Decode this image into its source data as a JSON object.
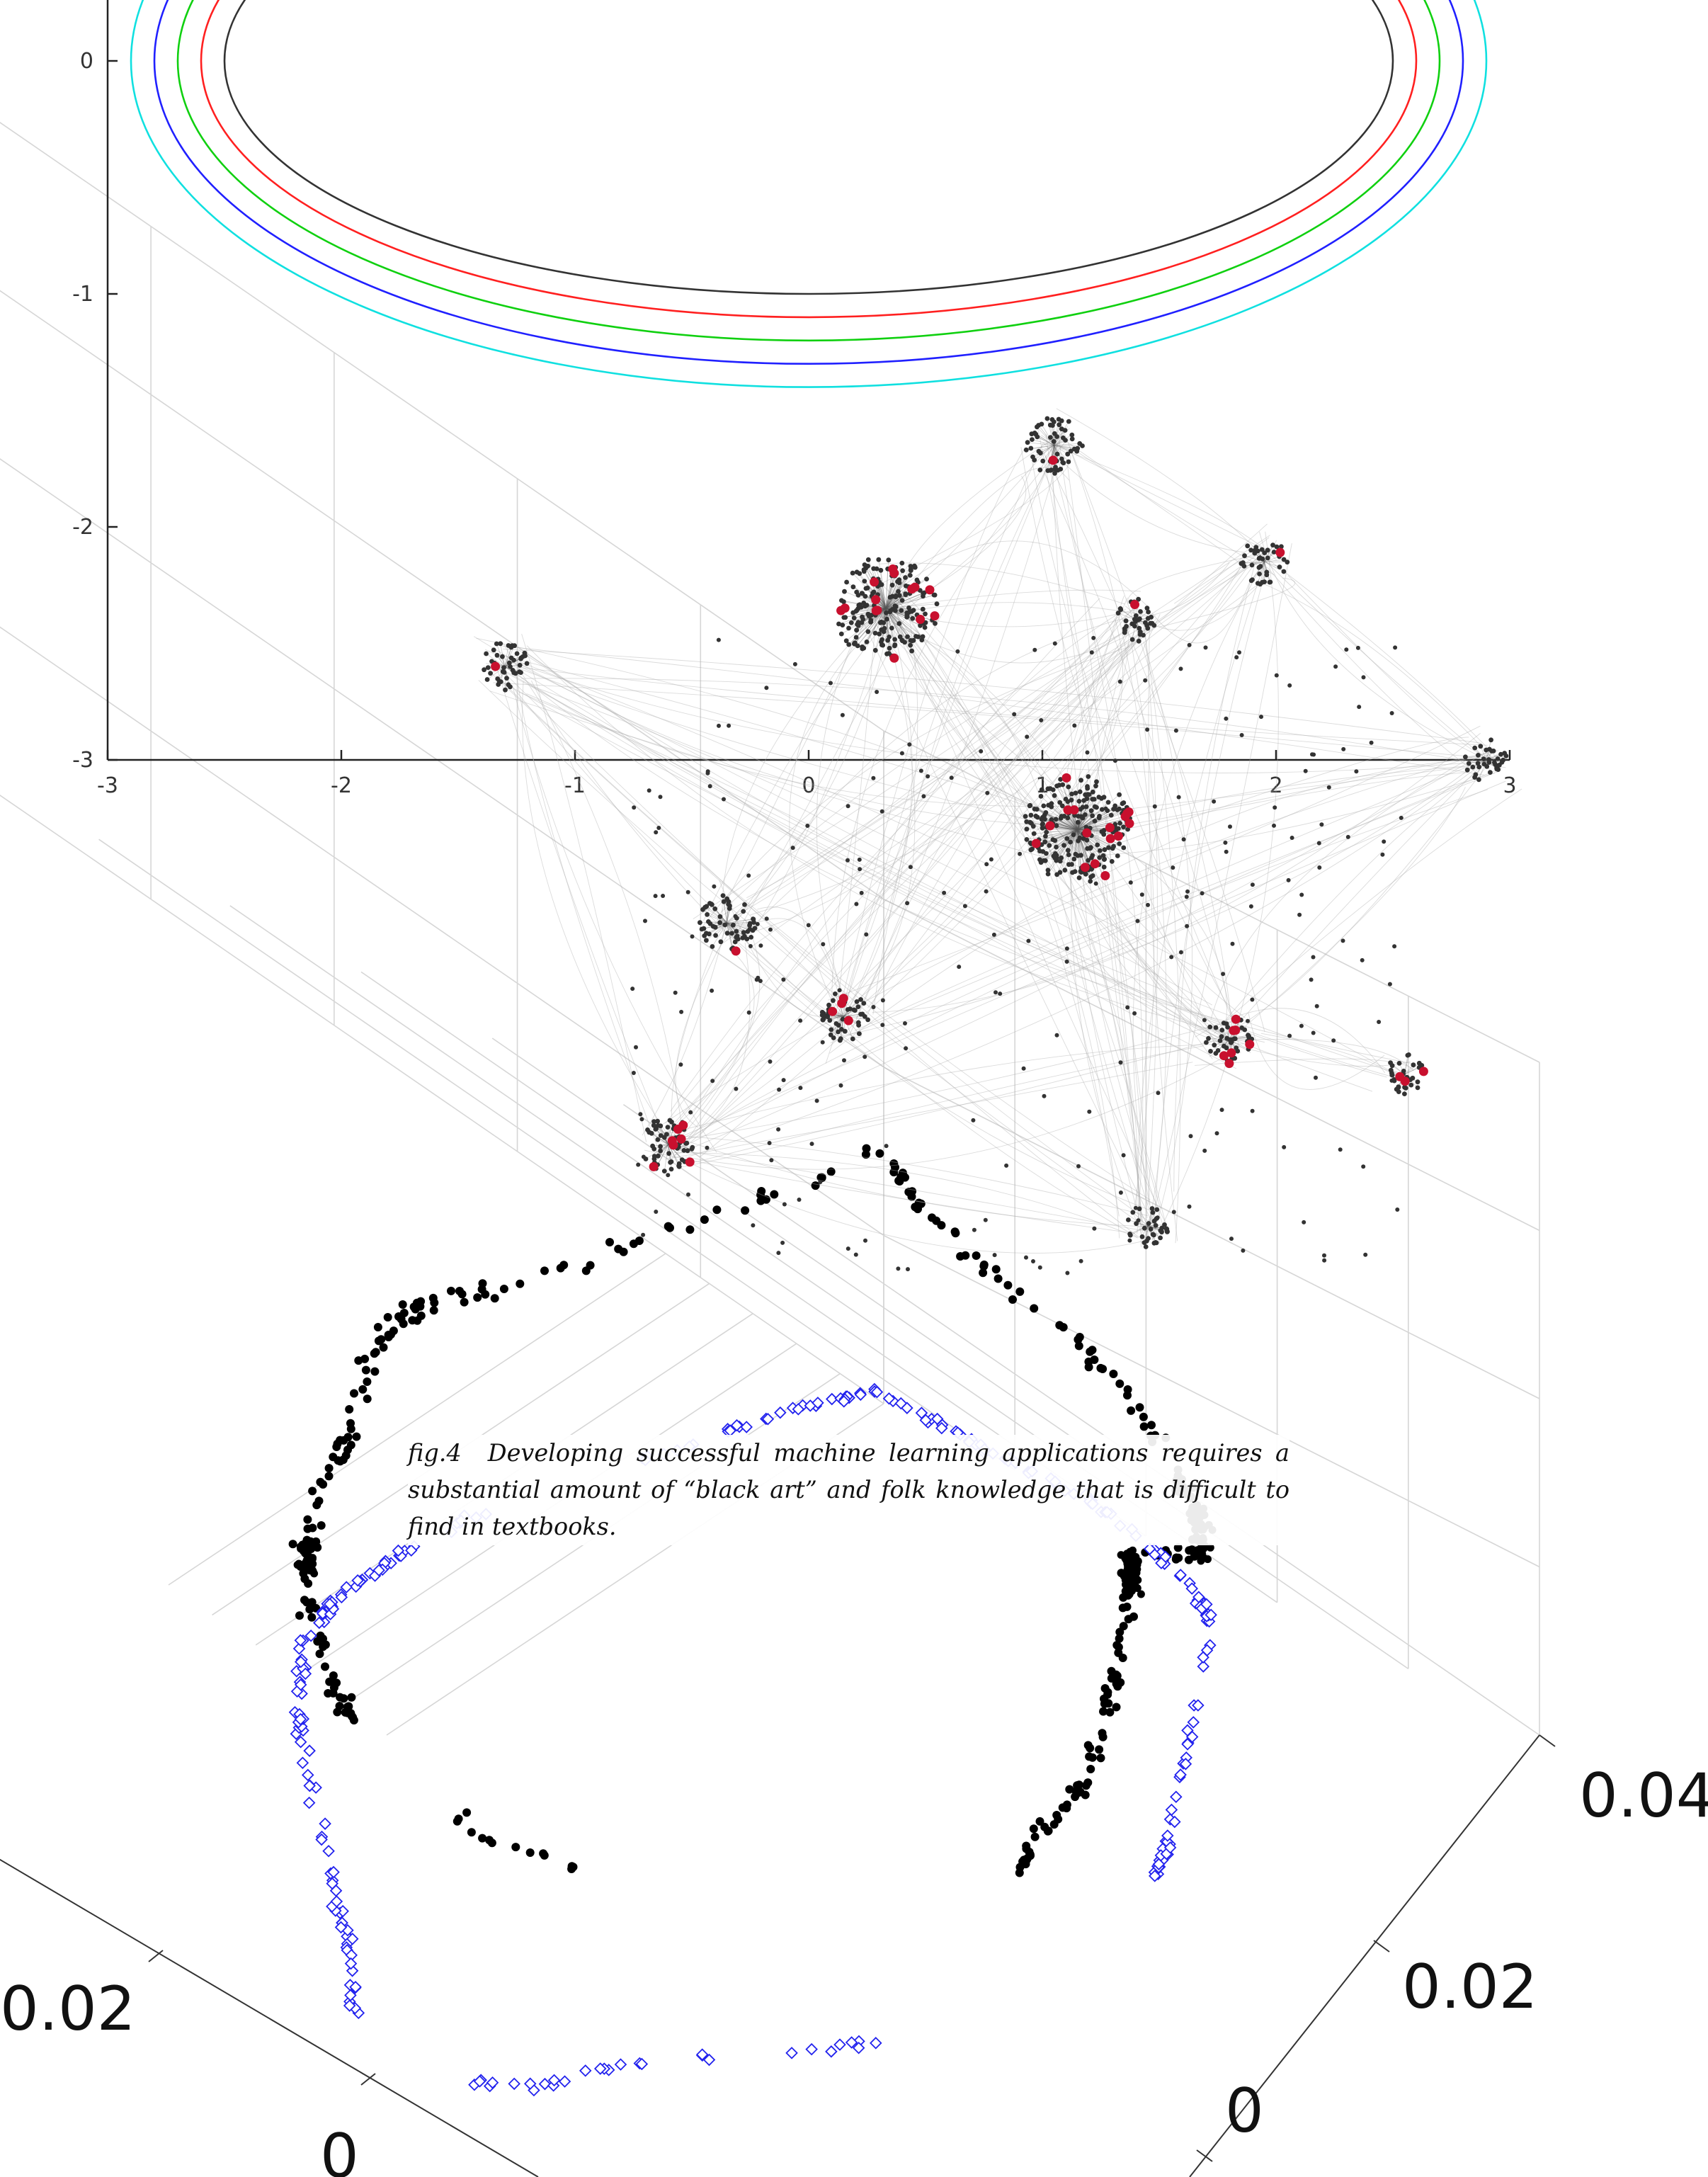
{
  "chart_data": [
    {
      "type": "line",
      "description_source": "2D plot of concentric ellipses",
      "x_ticks": [
        "-3",
        "-2",
        "-1",
        "0",
        "1",
        "2",
        "3"
      ],
      "y_ticks": [
        "0",
        "-1",
        "-2",
        "-3"
      ],
      "xlim": [
        -3,
        3
      ],
      "ylim": [
        -3,
        0.25
      ],
      "series": [
        {
          "color": "#333333",
          "semi_axes": [
            2.5,
            1.0
          ]
        },
        {
          "color": "#ff2020",
          "semi_axes": [
            2.6,
            1.1
          ]
        },
        {
          "color": "#10d010",
          "semi_axes": [
            2.7,
            1.2
          ]
        },
        {
          "color": "#2020ff",
          "semi_axes": [
            2.8,
            1.3
          ]
        },
        {
          "color": "#10e0e0",
          "semi_axes": [
            2.9,
            1.4
          ]
        }
      ]
    },
    {
      "type": "scatter",
      "description_source": "network graph of node clusters",
      "node_color": "#333333",
      "highlight_color": "#c8102e",
      "edge_color": "#b0b0b0",
      "clusters": [
        {
          "x": 0.33,
          "y": -2.35,
          "n": 200,
          "highlights": 14
        },
        {
          "x": 1.15,
          "y": -3.3,
          "n": 220,
          "highlights": 16
        },
        {
          "x": 1.05,
          "y": -1.65,
          "n": 60,
          "highlights": 1
        },
        {
          "x": 1.95,
          "y": -2.15,
          "n": 40,
          "highlights": 1
        },
        {
          "x": -1.3,
          "y": -2.6,
          "n": 45,
          "highlights": 1
        },
        {
          "x": 1.4,
          "y": -2.4,
          "n": 35,
          "highlights": 1
        },
        {
          "x": -0.35,
          "y": -3.7,
          "n": 60,
          "highlights": 1
        },
        {
          "x": 0.15,
          "y": -4.1,
          "n": 45,
          "highlights": 4
        },
        {
          "x": -0.6,
          "y": -4.65,
          "n": 55,
          "highlights": 7
        },
        {
          "x": 1.8,
          "y": -4.2,
          "n": 40,
          "highlights": 7
        },
        {
          "x": 2.55,
          "y": -4.35,
          "n": 30,
          "highlights": 3
        },
        {
          "x": 2.9,
          "y": -3.0,
          "n": 35,
          "highlights": 0
        },
        {
          "x": 1.45,
          "y": -5.0,
          "n": 35,
          "highlights": 0
        }
      ]
    },
    {
      "type": "scatter",
      "description_source": "3D scatter plot with two point series",
      "axis_ticks": {
        "right_axis": [
          "0.04",
          "0.02",
          "0"
        ],
        "left_axis": [
          "0.02",
          "0"
        ]
      },
      "series": [
        {
          "marker": "filled-dot",
          "color": "#000000"
        },
        {
          "marker": "open-diamond",
          "color": "#2222ee"
        }
      ]
    }
  ],
  "caption": {
    "label": "fig.4",
    "text": "Developing successful machine learning applications requires a substantial amount of “black art” and folk knowledge that is difficult to find in textbooks."
  }
}
